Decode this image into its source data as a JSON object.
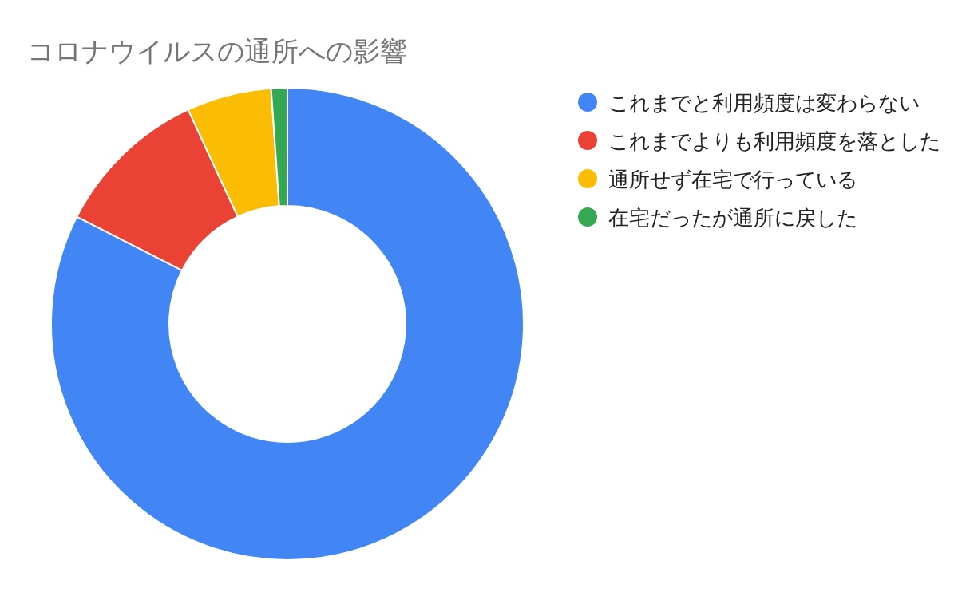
{
  "chart_data": {
    "type": "donut",
    "title": "コロナウイルスの通所への影響",
    "categories": [
      "これまでと利用頻度は変わらない",
      "これまでよりも利用頻度を落とした",
      "通所せず在宅で行っている",
      "在宅だったが通所に戻した"
    ],
    "values": [
      82.5,
      10.6,
      5.8,
      1.1
    ],
    "colors": [
      "#4285f4",
      "#ea4335",
      "#fbbc04",
      "#34a853"
    ],
    "legend": "right"
  }
}
